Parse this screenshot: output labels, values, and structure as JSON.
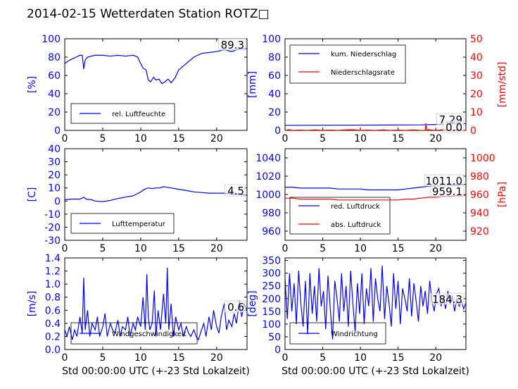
{
  "title": "2014-02-15 Wetterdaten Station ROTZ□",
  "chart_data": [
    {
      "type": "line",
      "panel": "humidity",
      "xlim": [
        0,
        24
      ],
      "xticks": [
        0,
        5,
        10,
        15,
        20
      ],
      "ylabel": "[%]",
      "ylim": [
        0,
        100
      ],
      "yticks": [
        0,
        20,
        40,
        60,
        80,
        100
      ],
      "last_value_label": "89.3",
      "legend_placement": "bottom-left",
      "series": [
        {
          "name": "rel. Luftfeuchte",
          "color": "#0000ff",
          "axis": "left",
          "x": [
            0,
            0.5,
            1,
            1.5,
            2,
            2.3,
            2.5,
            2.7,
            3,
            4,
            5,
            6,
            7,
            8,
            9,
            9.6,
            10,
            10.3,
            10.7,
            11,
            11.3,
            11.7,
            12,
            12.4,
            12.8,
            13.2,
            13.6,
            14,
            14.5,
            15,
            16,
            17,
            18,
            19,
            20,
            21,
            22,
            23,
            24
          ],
          "y": [
            73,
            76,
            78,
            80,
            82,
            82,
            67,
            77,
            80,
            82,
            82,
            81,
            82,
            81,
            82,
            80,
            73,
            68,
            66,
            55,
            53,
            58,
            55,
            56,
            51,
            53,
            56,
            52,
            57,
            66,
            73,
            80,
            84,
            85,
            86,
            88,
            86,
            89,
            89.3
          ]
        }
      ]
    },
    {
      "type": "line",
      "panel": "precipitation",
      "xlim": [
        0,
        24
      ],
      "xticks": [
        0,
        5,
        10,
        15,
        20
      ],
      "ylabel": "[mm]",
      "ylim": [
        0,
        100
      ],
      "yticks": [
        0,
        20,
        40,
        60,
        80,
        100
      ],
      "y2label": "[mm/std]",
      "y2lim": [
        0,
        50
      ],
      "y2ticks": [
        0,
        10,
        20,
        30,
        40,
        50
      ],
      "last_value_labels": [
        "7.29",
        "0.0"
      ],
      "legend_placement": "top-left",
      "series": [
        {
          "name": "kum. Niederschlag",
          "color": "#0000ff",
          "axis": "left",
          "x": [
            0,
            6,
            12,
            18,
            20,
            22,
            24
          ],
          "y": [
            5.5,
            5.6,
            5.8,
            6.0,
            6.5,
            7.0,
            7.29
          ]
        },
        {
          "name": "Niederschlagsrate",
          "color": "#ff0000",
          "axis": "right",
          "x": [
            0,
            0.5,
            1,
            2,
            3,
            4,
            5,
            6,
            7,
            8,
            9,
            10,
            11,
            12,
            13,
            14,
            15,
            16,
            17,
            18,
            18.6,
            18.7,
            18.8,
            19,
            20,
            21,
            22,
            23,
            24
          ],
          "y": [
            0,
            0.4,
            0,
            0.2,
            0,
            0.3,
            0,
            0.2,
            0,
            0.3,
            0.4,
            0,
            0.2,
            0,
            0.3,
            0,
            0.2,
            0,
            0.3,
            0,
            0,
            3.8,
            0,
            0.4,
            0,
            0.4,
            0,
            0.4,
            0
          ]
        }
      ]
    },
    {
      "type": "line",
      "panel": "temperature",
      "xlim": [
        0,
        24
      ],
      "xticks": [
        0,
        5,
        10,
        15,
        20
      ],
      "ylabel": "[C]",
      "ylim": [
        -30,
        40
      ],
      "yticks": [
        -30,
        -20,
        -10,
        0,
        10,
        20,
        30,
        40
      ],
      "last_value_label": "4.5",
      "legend_placement": "bottom-left",
      "series": [
        {
          "name": "Lufttemperatur",
          "color": "#0000ff",
          "axis": "left",
          "x": [
            0,
            1,
            2,
            2.5,
            2.8,
            3.5,
            4,
            5,
            6,
            7,
            8,
            9,
            9.5,
            10,
            10.5,
            11,
            11.5,
            12,
            12.5,
            13,
            13.5,
            14,
            15,
            16,
            17,
            18,
            19,
            20,
            21,
            22,
            23,
            24
          ],
          "y": [
            1,
            1.5,
            1.5,
            3,
            1.5,
            1,
            0,
            -0.5,
            0.5,
            2,
            3,
            4,
            5.5,
            7,
            9,
            10,
            9.5,
            10,
            10,
            11,
            10.5,
            10,
            9,
            8,
            7,
            6.5,
            6,
            6,
            6,
            5.5,
            5,
            4.5
          ]
        }
      ]
    },
    {
      "type": "line",
      "panel": "pressure",
      "xlim": [
        0,
        24
      ],
      "xticks": [
        0,
        5,
        10,
        15,
        20
      ],
      "ylim": [
        950,
        1050
      ],
      "yticks": [
        960,
        980,
        1000,
        1020,
        1040
      ],
      "y2label": "[hPa]",
      "y2lim": [
        910,
        1010
      ],
      "y2ticks": [
        920,
        940,
        960,
        980,
        1000
      ],
      "last_value_labels": [
        "1011.0",
        "959.1"
      ],
      "legend_placement": "bottom-left",
      "series": [
        {
          "name": "red. Luftdruck",
          "color": "#0000ff",
          "axis": "left",
          "x": [
            0,
            1,
            2,
            3,
            4,
            5,
            6,
            7,
            8,
            9,
            10,
            11,
            12,
            13,
            14,
            15,
            16,
            17,
            18,
            19,
            20,
            21,
            22,
            23,
            24
          ],
          "y": [
            1008,
            1008,
            1007,
            1007,
            1007,
            1007,
            1007,
            1006,
            1006,
            1006,
            1006,
            1005,
            1005,
            1005,
            1005,
            1005,
            1006,
            1007,
            1008,
            1009,
            1009,
            1010,
            1010,
            1011,
            1011
          ]
        },
        {
          "name": "abs. Luftdruck",
          "color": "#ff0000",
          "axis": "right",
          "x": [
            0,
            1,
            2,
            3,
            4,
            5,
            6,
            7,
            8,
            9,
            10,
            11,
            12,
            13,
            14,
            15,
            16,
            17,
            18,
            19,
            20,
            21,
            22,
            23,
            24
          ],
          "y": [
            956,
            956,
            955,
            955,
            955,
            955,
            955,
            954,
            954,
            954,
            954,
            954,
            954,
            954,
            954,
            954,
            955,
            955,
            956,
            957,
            957,
            958,
            958,
            959,
            959.1
          ]
        }
      ]
    },
    {
      "type": "line",
      "panel": "wind_speed",
      "xlim": [
        0,
        24
      ],
      "xticks": [
        0,
        5,
        10,
        15,
        20
      ],
      "xlabel": "Std 00:00:00 UTC (+-23 Std Lokalzeit)",
      "ylabel": "[m/s]",
      "ylim": [
        0,
        1.4
      ],
      "yticks": [
        "0.0",
        "0.2",
        "0.4",
        "0.6",
        "0.8",
        "1.0",
        "1.2",
        "1.4"
      ],
      "last_value_label": "0.6",
      "legend_placement": "bottom-left",
      "series": [
        {
          "name": "Windgeschwindigkeit",
          "color": "#0000ff",
          "axis": "left",
          "x": [
            0,
            0.3,
            0.6,
            1,
            1.3,
            1.6,
            2,
            2.3,
            2.5,
            2.7,
            3,
            3.3,
            3.6,
            4,
            4.3,
            4.6,
            5,
            5.3,
            5.6,
            6,
            6.3,
            6.6,
            7,
            7.3,
            7.6,
            8,
            8.3,
            8.6,
            9,
            9.3,
            9.6,
            10,
            10.3,
            10.6,
            10.8,
            11,
            11.2,
            11.5,
            11.8,
            12,
            12.3,
            12.6,
            13,
            13.3,
            13.5,
            13.7,
            14,
            14.3,
            14.6,
            15,
            15.3,
            15.6,
            16,
            16.3,
            16.6,
            17,
            17.3,
            17.6,
            18,
            18.3,
            18.6,
            19,
            19.3,
            19.6,
            20,
            20.3,
            20.6,
            21,
            21.3,
            21.6,
            22,
            22.3,
            22.6,
            23,
            23.3,
            23.6,
            24
          ],
          "y": [
            0.3,
            0.2,
            0.35,
            0.15,
            0.3,
            0.2,
            0.5,
            0.25,
            1.1,
            0.3,
            0.6,
            0.2,
            0.4,
            0.3,
            0.5,
            0.2,
            0.35,
            0.55,
            0.2,
            0.4,
            0.3,
            0.25,
            0.45,
            0.2,
            0.35,
            0.3,
            0.5,
            0.2,
            0.4,
            0.3,
            0.5,
            0.35,
            0.8,
            0.3,
            1.15,
            0.5,
            0.3,
            0.4,
            0.9,
            0.2,
            0.6,
            0.3,
            0.85,
            0.4,
            1.25,
            0.3,
            0.7,
            0.2,
            0.5,
            0.3,
            0.4,
            0.2,
            0.35,
            0.25,
            0.2,
            0.3,
            0.2,
            0.15,
            0.3,
            0.4,
            0.2,
            0.5,
            0.3,
            0.6,
            0.35,
            0.25,
            0.5,
            0.7,
            0.3,
            0.45,
            0.35,
            0.55,
            0.4,
            0.75,
            0.5,
            0.7,
            0.6
          ]
        }
      ]
    },
    {
      "type": "line",
      "panel": "wind_direction",
      "xlim": [
        0,
        24
      ],
      "xticks": [
        0,
        5,
        10,
        15,
        20
      ],
      "xlabel": "Std 00:00:00 UTC (+-23 Std Lokalzeit)",
      "ylabel": "[deg]",
      "ylim": [
        0,
        360
      ],
      "yticks": [
        0,
        50,
        100,
        150,
        200,
        250,
        300,
        350
      ],
      "last_value_label": "184.3",
      "legend_placement": "bottom-left",
      "series": [
        {
          "name": "Windrichtung",
          "color": "#0000ff",
          "axis": "left",
          "x": [
            0,
            0.3,
            0.6,
            0.9,
            1.2,
            1.5,
            1.8,
            2.1,
            2.4,
            2.7,
            3,
            3.3,
            3.6,
            3.9,
            4.2,
            4.5,
            4.8,
            5.1,
            5.4,
            5.7,
            6,
            6.3,
            6.6,
            6.9,
            7.2,
            7.5,
            7.8,
            8.1,
            8.4,
            8.7,
            9,
            9.3,
            9.6,
            9.9,
            10.2,
            10.5,
            10.8,
            11.1,
            11.4,
            11.7,
            12,
            12.3,
            12.6,
            12.9,
            13.2,
            13.5,
            13.8,
            14.1,
            14.4,
            14.7,
            15,
            15.3,
            15.6,
            15.9,
            16.2,
            16.5,
            16.8,
            17.1,
            17.4,
            17.7,
            18,
            18.3,
            18.6,
            18.9,
            19.2,
            19.5,
            19.8,
            20.1,
            20.4,
            20.7,
            21,
            21.3,
            21.6,
            21.9,
            22.2,
            22.5,
            22.8,
            23.1,
            23.4,
            23.7,
            24
          ],
          "y": [
            280,
            120,
            300,
            150,
            260,
            100,
            310,
            180,
            90,
            270,
            60,
            300,
            140,
            250,
            110,
            320,
            170,
            230,
            80,
            290,
            160,
            40,
            270,
            200,
            110,
            300,
            150,
            250,
            90,
            310,
            180,
            70,
            260,
            140,
            300,
            100,
            240,
            170,
            320,
            110,
            280,
            200,
            150,
            330,
            120,
            250,
            180,
            90,
            300,
            160,
            270,
            100,
            240,
            200,
            150,
            280,
            130,
            260,
            190,
            110,
            250,
            170,
            230,
            140,
            270,
            190,
            150,
            220,
            240,
            170,
            200,
            160,
            230,
            180,
            210,
            150,
            200,
            170,
            190,
            160,
            184.3
          ]
        }
      ]
    }
  ]
}
